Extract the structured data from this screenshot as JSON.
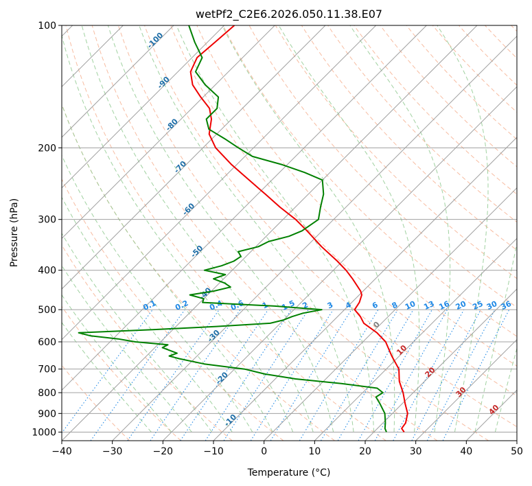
{
  "chart_data": {
    "type": "line",
    "diagram": "skew-T log-P",
    "title": "wetPf2_C2E6.2026.050.11.38.E07",
    "xlabel": "Temperature (°C)",
    "ylabel": "Pressure (hPa)",
    "xlim": [
      -40,
      50
    ],
    "ylim": [
      1050,
      100
    ],
    "yscale": "log",
    "grid": true,
    "x_ticks": [
      -40,
      -30,
      -20,
      -10,
      0,
      10,
      20,
      30,
      40,
      50
    ],
    "y_ticks": [
      1000,
      900,
      800,
      700,
      600,
      500,
      400,
      300,
      200,
      100
    ],
    "colors": {
      "temperature": "#ee0000",
      "dewpoint": "#008000",
      "isotherm": "#a0a0a0",
      "dry_adiabat": "#f4a582",
      "moist_adiabat": "#8fc98f",
      "mixing_ratio": "#1e88e5",
      "dry_adiabat_label": "#1f6fa8",
      "moist_adiabat_label": "#c62828"
    },
    "series": [
      {
        "key": "temperature",
        "pressure_hPa": [
          1000,
          980,
          950,
          900,
          850,
          800,
          750,
          700,
          650,
          600,
          570,
          540,
          520,
          500,
          480,
          460,
          450,
          420,
          400,
          380,
          350,
          320,
          300,
          280,
          260,
          240,
          220,
          200,
          185,
          170,
          160,
          150,
          140,
          130,
          120,
          110,
          100
        ],
        "temp_C": [
          26,
          24.8,
          24.5,
          23.0,
          20.5,
          18.0,
          15.0,
          12.5,
          8.5,
          4.5,
          1.0,
          -3.5,
          -5.5,
          -8.0,
          -8.5,
          -9.5,
          -10.5,
          -14.5,
          -17.5,
          -21.0,
          -27.0,
          -33.0,
          -37.5,
          -43.0,
          -48.5,
          -54.5,
          -61.0,
          -67.5,
          -71.5,
          -74.0,
          -76.5,
          -80.5,
          -84.5,
          -87.5,
          -89.0,
          -88.5,
          -88.0
        ]
      },
      {
        "key": "dewpoint",
        "pressure_hPa": [
          1000,
          980,
          950,
          900,
          850,
          820,
          800,
          780,
          760,
          740,
          720,
          700,
          680,
          660,
          650,
          640,
          620,
          610,
          600,
          590,
          580,
          570,
          560,
          550,
          540,
          530,
          520,
          510,
          500,
          490,
          480,
          470,
          460,
          450,
          440,
          430,
          420,
          410,
          400,
          390,
          380,
          370,
          360,
          350,
          340,
          330,
          320,
          300,
          280,
          260,
          240,
          230,
          220,
          210,
          200,
          190,
          180,
          170,
          160,
          150,
          140,
          130,
          120,
          110,
          100
        ],
        "dewpoint_C": [
          22.5,
          21.5,
          20.5,
          18.5,
          15.5,
          13.5,
          14.0,
          12.0,
          4.0,
          -6.0,
          -13.0,
          -18.0,
          -27.0,
          -33.0,
          -35.5,
          -34.5,
          -38.5,
          -38.0,
          -45.0,
          -49.0,
          -55.0,
          -58.0,
          -44.0,
          -32.0,
          -22.0,
          -20.0,
          -19.0,
          -17.5,
          -14.5,
          -24.5,
          -39.5,
          -40.0,
          -43.5,
          -39.5,
          -37.0,
          -39.0,
          -42.0,
          -40.5,
          -45.5,
          -43.0,
          -41.5,
          -41.0,
          -42.5,
          -39.5,
          -38.5,
          -35.5,
          -34.0,
          -33.0,
          -35.0,
          -37.0,
          -40.0,
          -45.0,
          -51.0,
          -58.5,
          -63.0,
          -67.5,
          -72.5,
          -75.0,
          -75.0,
          -77.0,
          -82.0,
          -86.5,
          -88.0,
          -92.5,
          -97.0
        ]
      }
    ],
    "annotations": {
      "mixing_ratio_labels": [
        "0.1",
        "0.2",
        "0.4",
        "0.6",
        "1",
        "1.5",
        "2",
        "3",
        "4",
        "6",
        "8",
        "10",
        "13",
        "16",
        "20",
        "25",
        "30",
        "36"
      ],
      "dry_adiabat_labels": [
        "-100",
        "-90",
        "-80",
        "-70",
        "-60",
        "-50",
        "-40",
        "-30",
        "-20",
        "-10"
      ],
      "moist_adiabat_labels": [
        "0",
        "10",
        "20",
        "30",
        "40"
      ]
    }
  }
}
